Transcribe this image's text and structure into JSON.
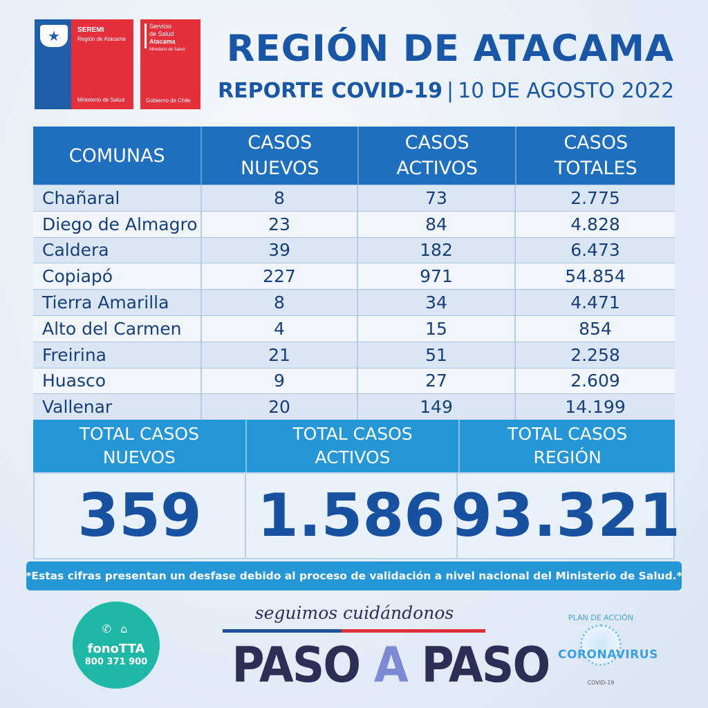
{
  "logos": {
    "seremi": {
      "name": "SEREMI",
      "region": "Región de Atacama",
      "ministry": "Ministerio de Salud",
      "color": "#e52f3b",
      "accent": "#1f5ea8"
    },
    "servicio": {
      "line1": "Servicio",
      "line2": "de Salud",
      "line3": "Atacama",
      "ministry": "Ministerio de Salud",
      "gobierno": "Gobierno de Chile"
    }
  },
  "header": {
    "title": "REGIÓN DE ATACAMA",
    "report": "REPORTE COVID-19",
    "separator": "|",
    "date": "10 DE AGOSTO 2022"
  },
  "table": {
    "headers": {
      "comunas": "COMUNAS",
      "nuevos_1": "CASOS",
      "nuevos_2": "NUEVOS",
      "activos_1": "CASOS",
      "activos_2": "ACTIVOS",
      "totales_1": "CASOS",
      "totales_2": "TOTALES"
    },
    "rows": [
      {
        "comuna": "Chañaral",
        "nuevos": "8",
        "activos": "73",
        "totales": "2.775"
      },
      {
        "comuna": "Diego de Almagro",
        "nuevos": "23",
        "activos": "84",
        "totales": "4.828"
      },
      {
        "comuna": "Caldera",
        "nuevos": "39",
        "activos": "182",
        "totales": "6.473"
      },
      {
        "comuna": "Copiapó",
        "nuevos": "227",
        "activos": "971",
        "totales": "54.854"
      },
      {
        "comuna": "Tierra Amarilla",
        "nuevos": "8",
        "activos": "34",
        "totales": "4.471"
      },
      {
        "comuna": "Alto del Carmen",
        "nuevos": "4",
        "activos": "15",
        "totales": "854"
      },
      {
        "comuna": "Freirina",
        "nuevos": "21",
        "activos": "51",
        "totales": "2.258"
      },
      {
        "comuna": "Huasco",
        "nuevos": "9",
        "activos": "27",
        "totales": "2.609"
      },
      {
        "comuna": "Vallenar",
        "nuevos": "20",
        "activos": "149",
        "totales": "14.199"
      }
    ]
  },
  "totals": {
    "nuevos_label_1": "TOTAL CASOS",
    "nuevos_label_2": "NUEVOS",
    "activos_label_1": "TOTAL CASOS",
    "activos_label_2": "ACTIVOS",
    "region_label_1": "TOTAL CASOS",
    "region_label_2": "REGIÓN",
    "nuevos_value": "359",
    "activos_value": "1.586",
    "region_value": "93.321"
  },
  "disclaimer": "*Estas cifras presentan un desfase debido al proceso de validación a nivel nacional del Ministerio de Salud.*",
  "footer": {
    "fono": {
      "name": "fonoTTA",
      "phone": "800 371 900",
      "color": "#1fb7a5"
    },
    "campaign": {
      "tagline": "seguimos cuidándonos",
      "paso1": "PASO",
      "a": "A",
      "paso2": "PASO"
    },
    "plan": {
      "top": "PLAN DE ACCIÓN",
      "word": "CORONAVIRUS",
      "sub": "COVID-19"
    }
  },
  "colors": {
    "primary": "#1a56a6",
    "table_header": "#1f6fbf",
    "totals_header": "#2596d6"
  }
}
